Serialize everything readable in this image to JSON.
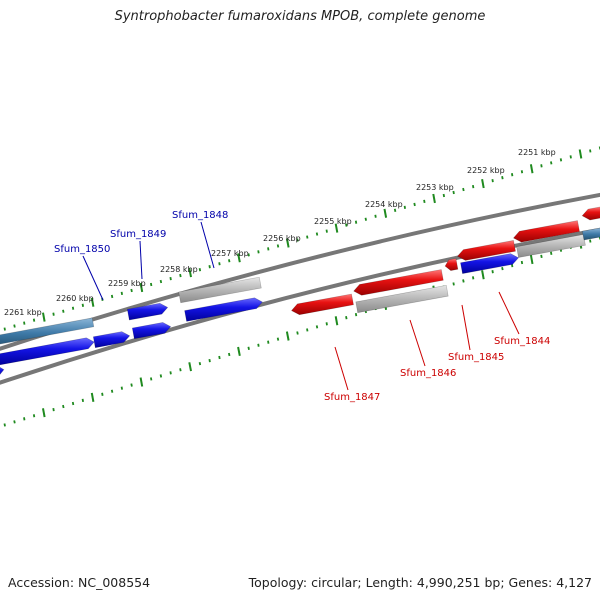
{
  "title": "Syntrophobacter fumaroxidans MPOB, complete genome",
  "footer": {
    "accession": "Accession: NC_008554",
    "summary": "Topology: circular; Length: 4,990,251 bp; Genes: 4,127"
  },
  "colors": {
    "forward": "#1010e0",
    "reverse": "#e01010",
    "pseudo_gray": "#b4b4b4",
    "steel": "#3f7aa8",
    "backbone": "#777777",
    "ticks": "#1f8a1f",
    "label_forward": "#0000aa",
    "label_reverse": "#cc0000"
  },
  "position_ruler": {
    "tick_labels": [
      "2251 kbp",
      "2252 kbp",
      "2253 kbp",
      "2254 kbp",
      "2255 kbp",
      "2256 kbp",
      "2257 kbp",
      "2258 kbp",
      "2259 kbp",
      "2260 kbp",
      "2261 kbp"
    ]
  },
  "genes": {
    "forward_strand": [
      "Sfum_1850",
      "Sfum_1849",
      "Sfum_1848"
    ],
    "reverse_strand": [
      "Sfum_1847",
      "Sfum_1846",
      "Sfum_1845",
      "Sfum_1844"
    ]
  }
}
